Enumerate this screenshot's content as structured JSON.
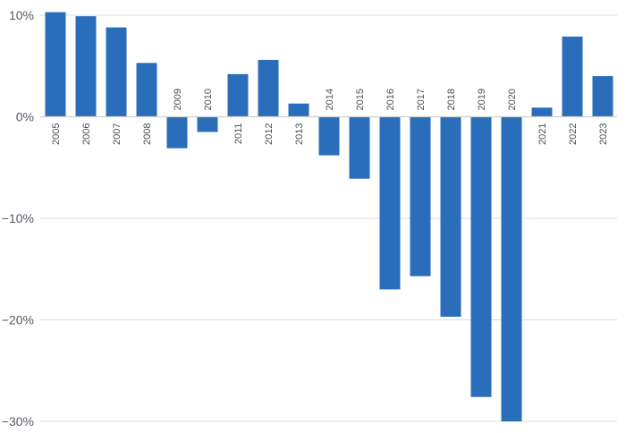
{
  "chart_data": {
    "type": "bar",
    "categories": [
      "2005",
      "2006",
      "2007",
      "2008",
      "2009",
      "2010",
      "2011",
      "2012",
      "2013",
      "2014",
      "2015",
      "2016",
      "2017",
      "2018",
      "2019",
      "2020",
      "2021",
      "2022",
      "2023"
    ],
    "values": [
      10.3,
      9.9,
      8.8,
      5.3,
      -3.1,
      -1.5,
      4.2,
      5.6,
      1.3,
      -3.8,
      -6.1,
      -17.0,
      -15.7,
      -19.7,
      -27.6,
      -30.0,
      0.9,
      7.9,
      4.0
    ],
    "ylim": [
      -30,
      10
    ],
    "yticks": [
      10,
      0,
      -10,
      -20,
      -30
    ],
    "ytick_labels": [
      "10%",
      "0%",
      "−10%",
      "−20%",
      "−30%"
    ],
    "grid": true,
    "bar_color": "#2a6ebb",
    "title": "",
    "xlabel": "",
    "ylabel": ""
  }
}
